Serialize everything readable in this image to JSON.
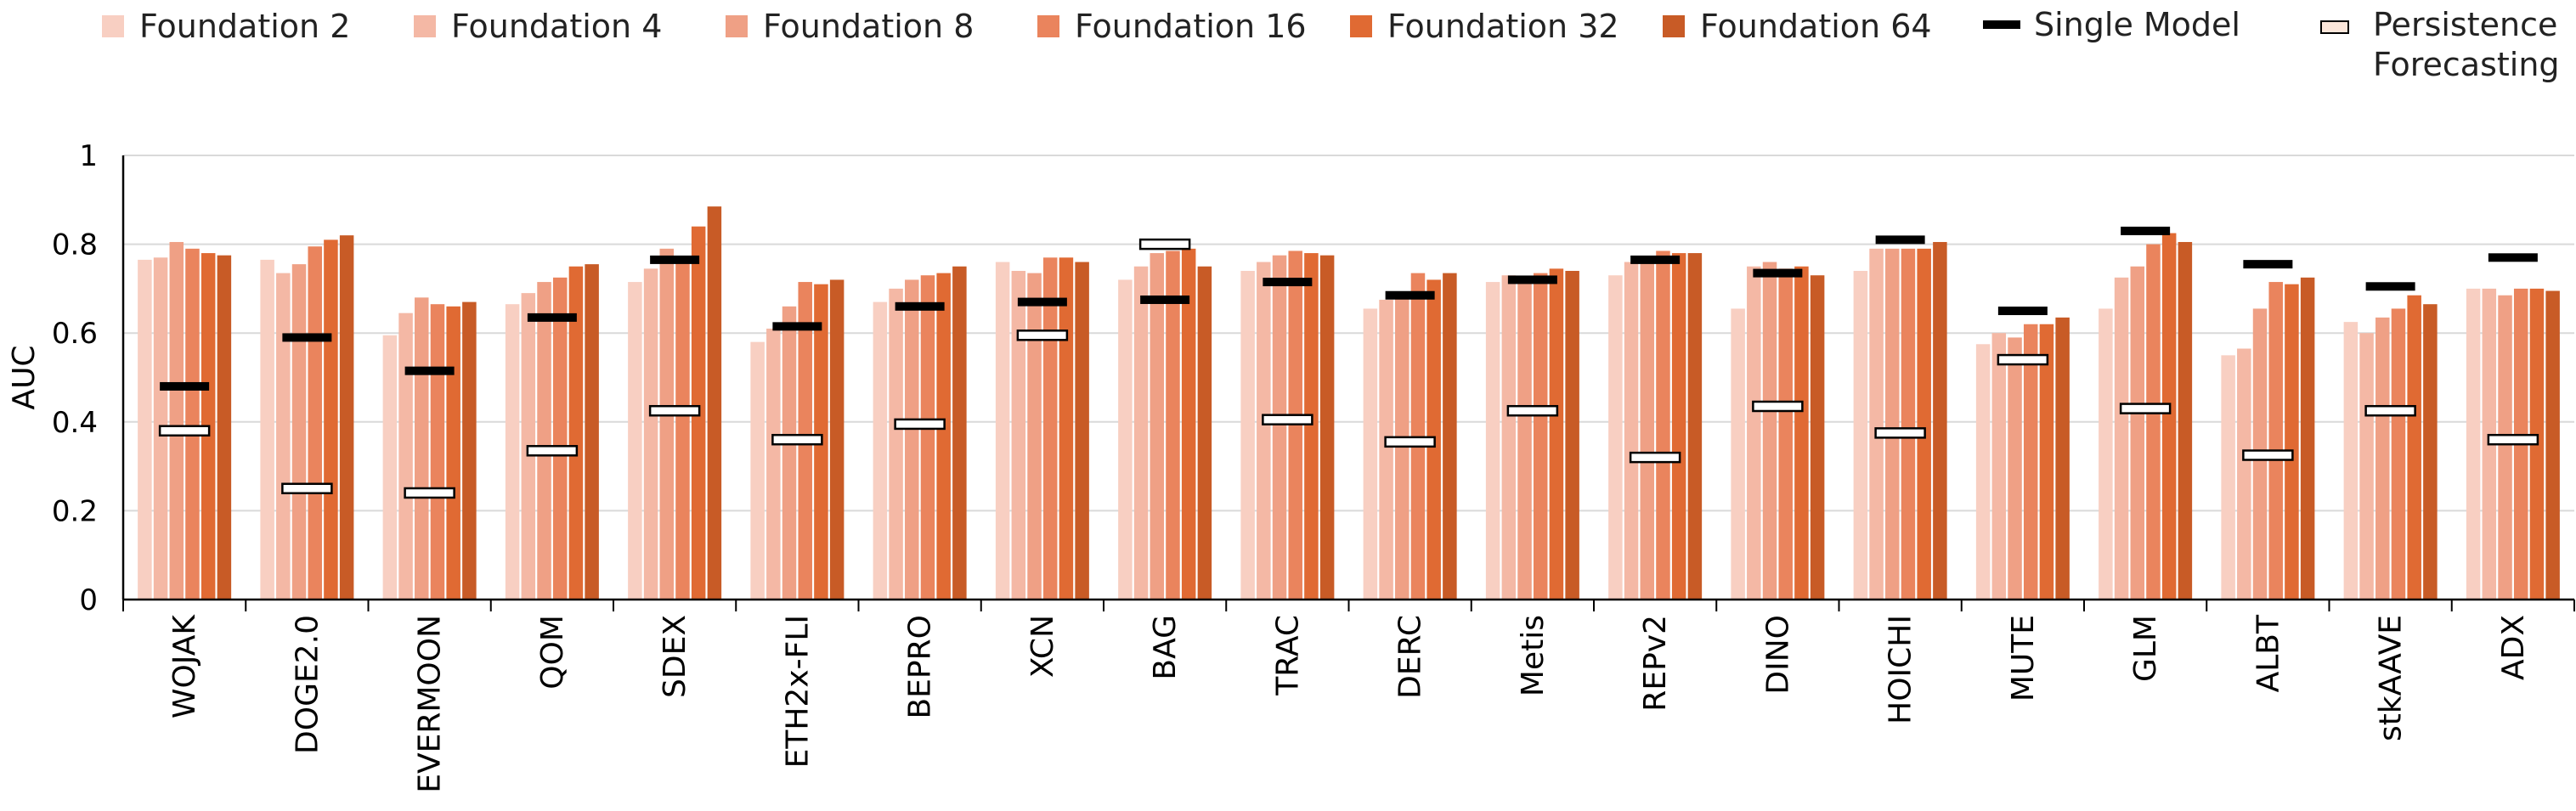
{
  "chart_data": {
    "type": "bar",
    "ylabel": "AUC",
    "xlabel": "",
    "ylim": [
      0,
      1
    ],
    "yticks": [
      0,
      0.2,
      0.4,
      0.6,
      0.8,
      1
    ],
    "ytick_labels": [
      "0",
      "0.2",
      "0.4",
      "0.6",
      "0.8",
      "1"
    ],
    "grid": "horizontal",
    "legend_position": "top",
    "categories": [
      "WOJAK",
      "DOGE2.0",
      "EVERMOON",
      "QOM",
      "SDEX",
      "ETH2x-FLI",
      "BEPRO",
      "XCN",
      "BAG",
      "TRAC",
      "DERC",
      "Metis",
      "REPv2",
      "DINO",
      "HOICHI",
      "MUTE",
      "GLM",
      "ALBT",
      "stkAAVE",
      "ADX"
    ],
    "series": [
      {
        "name": "Foundation 2",
        "color": "#f8cfc2",
        "values": [
          0.765,
          0.765,
          0.595,
          0.665,
          0.715,
          0.58,
          0.67,
          0.76,
          0.72,
          0.74,
          0.655,
          0.715,
          0.73,
          0.655,
          0.74,
          0.575,
          0.655,
          0.55,
          0.625,
          0.7
        ]
      },
      {
        "name": "Foundation 4",
        "color": "#f4b8a5",
        "values": [
          0.77,
          0.735,
          0.645,
          0.69,
          0.745,
          0.61,
          0.7,
          0.74,
          0.75,
          0.76,
          0.675,
          0.73,
          0.76,
          0.75,
          0.79,
          0.6,
          0.725,
          0.565,
          0.6,
          0.7
        ]
      },
      {
        "name": "Foundation 8",
        "color": "#efa085",
        "values": [
          0.805,
          0.755,
          0.68,
          0.715,
          0.79,
          0.66,
          0.72,
          0.735,
          0.78,
          0.775,
          0.68,
          0.725,
          0.77,
          0.76,
          0.79,
          0.59,
          0.75,
          0.655,
          0.635,
          0.685
        ]
      },
      {
        "name": "Foundation 16",
        "color": "#ea845d",
        "values": [
          0.79,
          0.795,
          0.665,
          0.725,
          0.77,
          0.715,
          0.73,
          0.77,
          0.785,
          0.785,
          0.735,
          0.735,
          0.785,
          0.745,
          0.79,
          0.62,
          0.8,
          0.715,
          0.655,
          0.7
        ]
      },
      {
        "name": "Foundation 32",
        "color": "#e06a33",
        "values": [
          0.78,
          0.81,
          0.66,
          0.75,
          0.84,
          0.71,
          0.735,
          0.77,
          0.79,
          0.78,
          0.72,
          0.745,
          0.78,
          0.75,
          0.79,
          0.62,
          0.825,
          0.71,
          0.685,
          0.7
        ]
      },
      {
        "name": "Foundation 64",
        "color": "#c85b26",
        "values": [
          0.775,
          0.82,
          0.67,
          0.755,
          0.885,
          0.72,
          0.75,
          0.76,
          0.75,
          0.775,
          0.735,
          0.74,
          0.78,
          0.73,
          0.805,
          0.635,
          0.805,
          0.725,
          0.665,
          0.695
        ]
      }
    ],
    "markers": [
      {
        "name": "Single Model",
        "style": "black-dash",
        "values": [
          0.48,
          0.59,
          0.515,
          0.635,
          0.765,
          0.615,
          0.66,
          0.67,
          0.675,
          0.715,
          0.685,
          0.72,
          0.765,
          0.735,
          0.81,
          0.65,
          0.83,
          0.755,
          0.705,
          0.77
        ]
      },
      {
        "name": "Persistence Forecasting",
        "legend_lines": [
          "Persistence",
          "Forecasting"
        ],
        "style": "hollow-box",
        "values": [
          0.38,
          0.25,
          0.24,
          0.335,
          0.425,
          0.36,
          0.395,
          0.595,
          0.8,
          0.405,
          0.355,
          0.425,
          0.32,
          0.435,
          0.375,
          0.54,
          0.43,
          0.325,
          0.425,
          0.36
        ]
      }
    ]
  }
}
